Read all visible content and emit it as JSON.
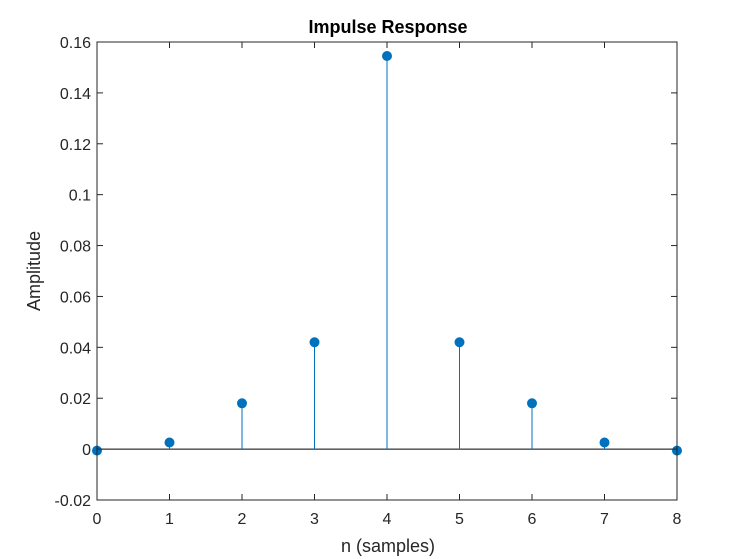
{
  "chart_data": {
    "type": "stem",
    "title": "Impulse Response",
    "xlabel": "n (samples)",
    "ylabel": "Amplitude",
    "xlim": [
      0,
      8
    ],
    "ylim": [
      -0.02,
      0.16
    ],
    "x_ticks": [
      0,
      1,
      2,
      3,
      4,
      5,
      6,
      7,
      8
    ],
    "x_tick_labels": [
      "0",
      "1",
      "2",
      "3",
      "4",
      "5",
      "6",
      "7",
      "8"
    ],
    "y_ticks": [
      -0.02,
      0,
      0.02,
      0.04,
      0.06,
      0.08,
      0.1,
      0.12,
      0.14,
      0.16
    ],
    "y_tick_labels": [
      "-0.02",
      "0",
      "0.02",
      "0.04",
      "0.06",
      "0.08",
      "0.1",
      "0.12",
      "0.14",
      "0.16"
    ],
    "grid": false,
    "series": [
      {
        "x": [
          0,
          1,
          2,
          3,
          4,
          5,
          6,
          7,
          8
        ],
        "values": [
          -0.0006,
          0.0026,
          0.018,
          0.042,
          0.1545,
          0.042,
          0.018,
          0.0026,
          -0.0006
        ],
        "color": "#0072BD"
      }
    ]
  }
}
